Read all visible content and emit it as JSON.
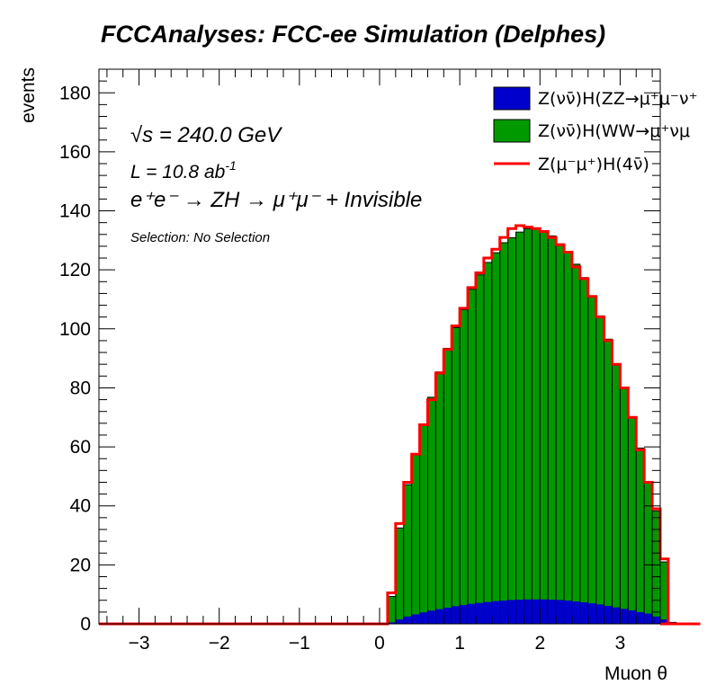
{
  "chart_data": {
    "type": "bar",
    "title": "FCCAnalyses: FCC-ee Simulation (Delphes)",
    "xlabel": "Muon θ",
    "ylabel": "events",
    "xlim": [
      -3.5,
      3.5
    ],
    "ylim": [
      0,
      188
    ],
    "x_ticks": [
      "−3",
      "−2",
      "−1",
      "0",
      "1",
      "2",
      "3"
    ],
    "y_ticks": [
      "0",
      "20",
      "40",
      "60",
      "80",
      "100",
      "120",
      "140",
      "160",
      "180"
    ],
    "bin_width": 0.1,
    "bin_start": 0.1,
    "annotations": {
      "sqrt_s": "√s = 240.0 GeV",
      "lumi_prefix": "L = 10.8 ab",
      "lumi_exp": "-1",
      "process": "e⁺e⁻ → ZH → μ⁺μ⁻ + Invisible",
      "selection": "Selection: No Selection"
    },
    "series": [
      {
        "name": "Z(νν̄)H(ZZ→μ⁺μ⁻ν⁺",
        "color": "#0000cc",
        "style": "stacked-fill",
        "values": [
          0.5,
          1.5,
          2.5,
          3.2,
          3.9,
          4.5,
          5.0,
          5.5,
          6.0,
          6.4,
          6.8,
          7.1,
          7.4,
          7.7,
          7.9,
          8.1,
          8.2,
          8.3,
          8.3,
          8.3,
          8.2,
          8.1,
          7.9,
          7.6,
          7.3,
          7.0,
          6.6,
          6.1,
          5.6,
          5.1,
          4.6,
          4.0,
          3.5,
          2.5,
          1.5,
          0.5,
          0,
          0,
          0
        ]
      },
      {
        "name": "Z(νν̄)H(WW→μ⁺νμ",
        "color": "#009900",
        "style": "stacked-fill",
        "values": [
          8.8,
          31.0,
          44.7,
          54.3,
          63.9,
          72.3,
          80.4,
          87.9,
          94.4,
          100.1,
          106.6,
          111.2,
          115.1,
          118.1,
          121.3,
          122.8,
          124.6,
          125.6,
          125.7,
          124.6,
          123.3,
          120.7,
          118.0,
          114.3,
          110.1,
          103.9,
          97.8,
          90.4,
          82.1,
          74.8,
          65.2,
          55.6,
          44.8,
          35.8,
          19.5,
          0,
          0,
          0,
          0
        ]
      },
      {
        "name": "Z(μ⁻μ⁺)H(4ν̄)",
        "color": "#ff0000",
        "style": "step",
        "values": [
          10.5,
          34.0,
          48.0,
          57.5,
          67.5,
          76.0,
          85.0,
          93.0,
          101.0,
          107.0,
          114.0,
          119.0,
          124.0,
          127.0,
          131.0,
          134.0,
          135.0,
          134.5,
          134.0,
          133.0,
          131.0,
          128.5,
          126.0,
          121.0,
          117.0,
          111.0,
          104.0,
          96.0,
          88.0,
          80.0,
          70.0,
          59.0,
          48.0,
          39.0,
          22.0,
          0,
          0,
          0,
          0
        ]
      }
    ],
    "legend": {
      "placement": "top-right"
    }
  }
}
